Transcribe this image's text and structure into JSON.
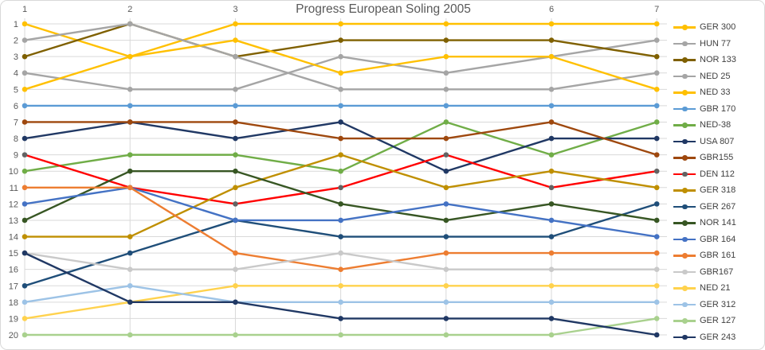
{
  "title": "Progress European Soling 2005",
  "chart_data": {
    "type": "line",
    "subtype": "bump-chart-rank-progress",
    "x": [
      1,
      2,
      3,
      4,
      5,
      6,
      7
    ],
    "xlabel": "",
    "ylabel": "",
    "x_axis_position": "top",
    "ylim": [
      1,
      20
    ],
    "y_inverted": true,
    "grid": true,
    "legend_position": "right",
    "grid_color": "#d9d9d9",
    "axis_text_color": "#595959",
    "title_color": "#595959",
    "series": [
      {
        "name": "GER 300",
        "color": "#FFC000",
        "positions": [
          1,
          3,
          1,
          1,
          1,
          1,
          1
        ]
      },
      {
        "name": "HUN 77",
        "color": "#A5A5A5",
        "positions": [
          4,
          5,
          5,
          3,
          4,
          3,
          2
        ]
      },
      {
        "name": "NOR 133",
        "color": "#7F6000",
        "positions": [
          3,
          1,
          3,
          2,
          2,
          2,
          3
        ]
      },
      {
        "name": "NED 25",
        "color": "#A5A5A5",
        "positions": [
          2,
          1,
          3,
          5,
          5,
          5,
          4
        ]
      },
      {
        "name": "NED 33",
        "color": "#FFC000",
        "positions": [
          5,
          3,
          2,
          4,
          3,
          3,
          5
        ]
      },
      {
        "name": "GBR 170",
        "color": "#5B9BD5",
        "positions": [
          6,
          6,
          6,
          6,
          6,
          6,
          6
        ]
      },
      {
        "name": "NED-38",
        "color": "#70AD47",
        "positions": [
          10,
          9,
          9,
          10,
          7,
          9,
          7
        ]
      },
      {
        "name": "USA 807",
        "color": "#203864",
        "positions": [
          8,
          7,
          8,
          7,
          10,
          8,
          8
        ]
      },
      {
        "name": "GBR155",
        "color": "#9E480E",
        "positions": [
          7,
          7,
          7,
          8,
          8,
          7,
          9
        ]
      },
      {
        "name": "DEN 112",
        "color": "#FF0000",
        "marker_color": "#636363",
        "positions": [
          9,
          11,
          12,
          11,
          9,
          11,
          10
        ]
      },
      {
        "name": "GER 318",
        "color": "#BF8F00",
        "positions": [
          14,
          14,
          11,
          9,
          11,
          10,
          11
        ]
      },
      {
        "name": "GER 267",
        "color": "#1F4E79",
        "positions": [
          17,
          15,
          13,
          14,
          14,
          14,
          12
        ]
      },
      {
        "name": "NOR 141",
        "color": "#375623",
        "positions": [
          13,
          10,
          10,
          12,
          13,
          12,
          13
        ]
      },
      {
        "name": "GBR 164",
        "color": "#4472C4",
        "positions": [
          12,
          11,
          13,
          13,
          12,
          13,
          14
        ]
      },
      {
        "name": "GBR 161",
        "color": "#ED7D31",
        "positions": [
          11,
          11,
          15,
          16,
          15,
          15,
          15
        ]
      },
      {
        "name": "GBR167",
        "color": "#C9C9C9",
        "positions": [
          15,
          16,
          16,
          15,
          16,
          16,
          16
        ]
      },
      {
        "name": "NED 21",
        "color": "#FFD24D",
        "positions": [
          19,
          18,
          17,
          17,
          17,
          17,
          17
        ]
      },
      {
        "name": "GER 312",
        "color": "#9DC3E6",
        "positions": [
          18,
          17,
          18,
          18,
          18,
          18,
          18
        ]
      },
      {
        "name": "GER 127",
        "color": "#A9D18E",
        "positions": [
          20,
          20,
          20,
          20,
          20,
          20,
          19
        ]
      },
      {
        "name": "GER 243",
        "color": "#203864",
        "positions": [
          15,
          18,
          18,
          19,
          19,
          19,
          20
        ]
      }
    ]
  }
}
